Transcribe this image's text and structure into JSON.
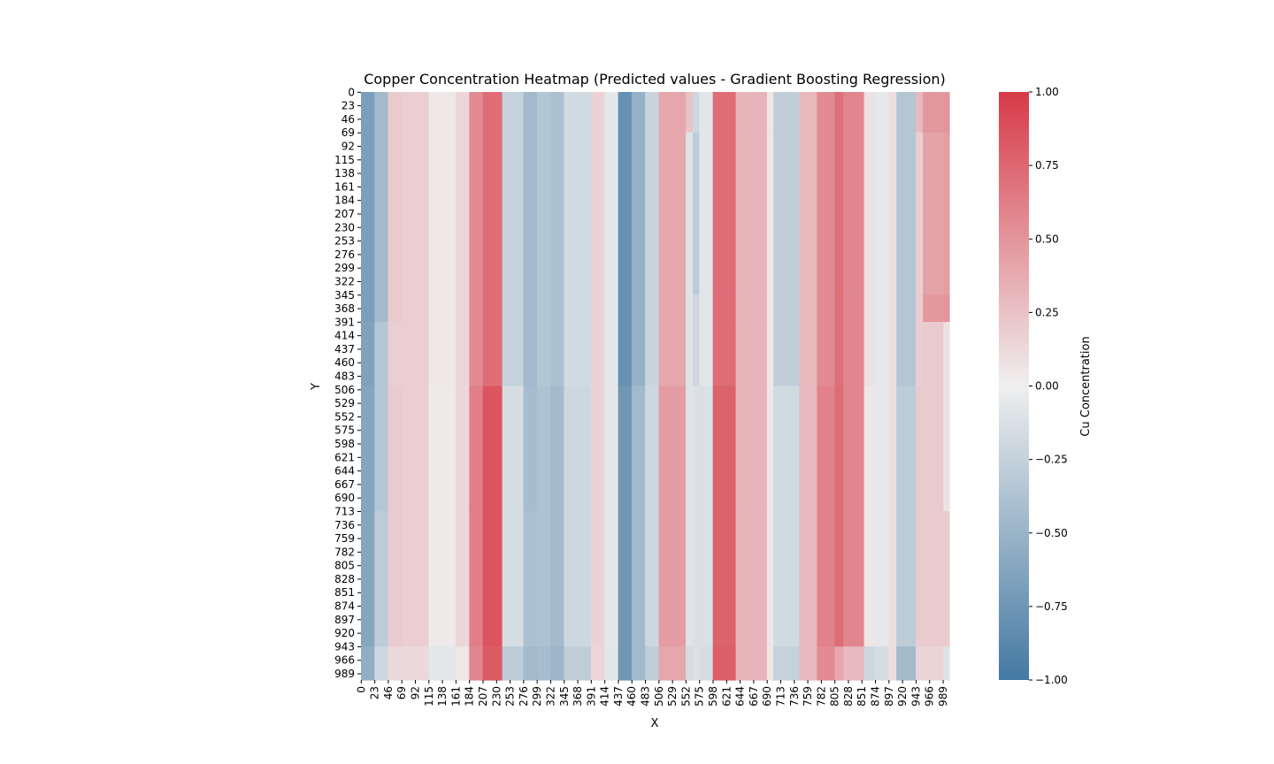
{
  "chart_data": {
    "type": "heatmap",
    "title": "Copper Concentration Heatmap (Predicted values - Gradient Boosting Regression)",
    "xlabel": "X",
    "ylabel": "Y",
    "colorbar_label": "Cu Concentration",
    "vmin": -1.0,
    "vmax": 1.0,
    "colormap": {
      "low": "#4479a2",
      "mid": "#efefef",
      "high": "#d73a47"
    },
    "x_ticks": [
      0,
      23,
      46,
      69,
      92,
      115,
      138,
      161,
      184,
      207,
      230,
      253,
      276,
      299,
      322,
      345,
      368,
      391,
      414,
      437,
      460,
      483,
      506,
      529,
      552,
      575,
      598,
      621,
      644,
      667,
      690,
      713,
      736,
      759,
      782,
      805,
      828,
      851,
      874,
      897,
      920,
      943,
      966,
      989
    ],
    "y_ticks": [
      0,
      23,
      46,
      69,
      92,
      115,
      138,
      161,
      184,
      207,
      230,
      253,
      276,
      299,
      322,
      345,
      368,
      391,
      414,
      437,
      460,
      483,
      506,
      529,
      552,
      575,
      598,
      621,
      644,
      667,
      690,
      713,
      736,
      759,
      782,
      805,
      828,
      851,
      874,
      897,
      920,
      943,
      966,
      989
    ],
    "colorbar_ticks": [
      "1.00",
      "0.75",
      "0.50",
      "0.25",
      "0.00",
      "−0.25",
      "−0.50",
      "−0.75",
      "−1.00"
    ],
    "colorbar_tick_values": [
      1.0,
      0.75,
      0.5,
      0.25,
      0.0,
      -0.25,
      -0.5,
      -0.75,
      -1.0
    ],
    "y_bands": [
      {
        "y_start": 0,
        "y_end": 69
      },
      {
        "y_start": 69,
        "y_end": 345
      },
      {
        "y_start": 345,
        "y_end": 391
      },
      {
        "y_start": 391,
        "y_end": 500
      },
      {
        "y_start": 500,
        "y_end": 713
      },
      {
        "y_start": 713,
        "y_end": 943
      },
      {
        "y_start": 943,
        "y_end": 1000
      }
    ],
    "x_columns": [
      {
        "x_start": 0,
        "x_end": 23,
        "values": [
          -0.68,
          -0.68,
          -0.68,
          -0.65,
          -0.62,
          -0.62,
          -0.55
        ]
      },
      {
        "x_start": 23,
        "x_end": 46,
        "values": [
          -0.45,
          -0.45,
          -0.45,
          -0.35,
          -0.35,
          -0.3,
          -0.2
        ]
      },
      {
        "x_start": 46,
        "x_end": 69,
        "values": [
          0.2,
          0.2,
          0.2,
          0.18,
          0.2,
          0.2,
          0.12
        ]
      },
      {
        "x_start": 69,
        "x_end": 115,
        "values": [
          0.18,
          0.18,
          0.18,
          0.18,
          0.18,
          0.18,
          0.12
        ]
      },
      {
        "x_start": 115,
        "x_end": 161,
        "values": [
          0.04,
          0.04,
          0.04,
          0.04,
          0.03,
          0.03,
          -0.06
        ]
      },
      {
        "x_start": 161,
        "x_end": 184,
        "values": [
          0.14,
          0.14,
          0.14,
          0.14,
          0.14,
          0.14,
          0.05
        ]
      },
      {
        "x_start": 184,
        "x_end": 207,
        "values": [
          0.55,
          0.55,
          0.55,
          0.55,
          0.62,
          0.62,
          0.58
        ]
      },
      {
        "x_start": 207,
        "x_end": 240,
        "values": [
          0.72,
          0.72,
          0.72,
          0.72,
          0.85,
          0.85,
          0.82
        ]
      },
      {
        "x_start": 240,
        "x_end": 276,
        "values": [
          -0.25,
          -0.25,
          -0.25,
          -0.25,
          -0.15,
          -0.15,
          -0.3
        ]
      },
      {
        "x_start": 276,
        "x_end": 299,
        "values": [
          -0.45,
          -0.45,
          -0.45,
          -0.45,
          -0.42,
          -0.4,
          -0.45
        ]
      },
      {
        "x_start": 299,
        "x_end": 322,
        "values": [
          -0.35,
          -0.35,
          -0.35,
          -0.35,
          -0.38,
          -0.38,
          -0.42
        ]
      },
      {
        "x_start": 322,
        "x_end": 345,
        "values": [
          -0.4,
          -0.4,
          -0.4,
          -0.4,
          -0.44,
          -0.44,
          -0.48
        ]
      },
      {
        "x_start": 345,
        "x_end": 391,
        "values": [
          -0.18,
          -0.18,
          -0.18,
          -0.18,
          -0.2,
          -0.2,
          -0.28
        ]
      },
      {
        "x_start": 391,
        "x_end": 414,
        "values": [
          0.16,
          0.16,
          0.16,
          0.16,
          0.16,
          0.16,
          0.14
        ]
      },
      {
        "x_start": 414,
        "x_end": 437,
        "values": [
          -0.06,
          -0.06,
          -0.06,
          -0.06,
          -0.06,
          -0.06,
          -0.08
        ]
      },
      {
        "x_start": 437,
        "x_end": 460,
        "values": [
          -0.8,
          -0.8,
          -0.8,
          -0.8,
          -0.75,
          -0.75,
          -0.75
        ]
      },
      {
        "x_start": 460,
        "x_end": 483,
        "values": [
          -0.52,
          -0.52,
          -0.52,
          -0.52,
          -0.45,
          -0.45,
          -0.45
        ]
      },
      {
        "x_start": 483,
        "x_end": 506,
        "values": [
          -0.22,
          -0.22,
          -0.22,
          -0.22,
          -0.2,
          -0.2,
          -0.28
        ]
      },
      {
        "x_start": 506,
        "x_end": 552,
        "values": [
          0.4,
          0.4,
          0.4,
          0.4,
          0.45,
          0.45,
          0.4
        ]
      },
      {
        "x_start": 552,
        "x_end": 564,
        "values": [
          0.25,
          -0.1,
          -0.1,
          -0.1,
          -0.1,
          -0.1,
          -0.15
        ]
      },
      {
        "x_start": 564,
        "x_end": 575,
        "values": [
          -0.2,
          -0.3,
          -0.2,
          -0.2,
          -0.12,
          -0.12,
          -0.12
        ]
      },
      {
        "x_start": 575,
        "x_end": 598,
        "values": [
          -0.08,
          -0.08,
          -0.08,
          -0.08,
          -0.12,
          -0.12,
          -0.15
        ]
      },
      {
        "x_start": 598,
        "x_end": 637,
        "values": [
          0.72,
          0.72,
          0.72,
          0.72,
          0.78,
          0.78,
          0.8
        ]
      },
      {
        "x_start": 637,
        "x_end": 690,
        "values": [
          0.32,
          0.32,
          0.32,
          0.32,
          0.32,
          0.32,
          0.32
        ]
      },
      {
        "x_start": 690,
        "x_end": 701,
        "values": [
          0.05,
          0.05,
          0.05,
          0.05,
          0.05,
          0.05,
          0.05
        ]
      },
      {
        "x_start": 701,
        "x_end": 745,
        "values": [
          -0.28,
          -0.28,
          -0.28,
          -0.28,
          -0.18,
          -0.18,
          -0.25
        ]
      },
      {
        "x_start": 745,
        "x_end": 775,
        "values": [
          0.3,
          0.3,
          0.3,
          0.3,
          0.3,
          0.3,
          0.3
        ]
      },
      {
        "x_start": 775,
        "x_end": 805,
        "values": [
          0.55,
          0.55,
          0.55,
          0.55,
          0.6,
          0.6,
          0.55
        ]
      },
      {
        "x_start": 805,
        "x_end": 820,
        "values": [
          0.7,
          0.7,
          0.7,
          0.7,
          0.72,
          0.72,
          0.4
        ]
      },
      {
        "x_start": 820,
        "x_end": 855,
        "values": [
          0.58,
          0.58,
          0.58,
          0.58,
          0.58,
          0.58,
          0.3
        ]
      },
      {
        "x_start": 855,
        "x_end": 874,
        "values": [
          0.08,
          0.08,
          0.08,
          0.08,
          0.05,
          0.05,
          -0.2
        ]
      },
      {
        "x_start": 874,
        "x_end": 897,
        "values": [
          -0.05,
          -0.05,
          -0.05,
          -0.05,
          -0.05,
          -0.05,
          -0.15
        ]
      },
      {
        "x_start": 897,
        "x_end": 910,
        "values": [
          0.1,
          0.1,
          0.1,
          0.1,
          0.1,
          0.1,
          0.1
        ]
      },
      {
        "x_start": 910,
        "x_end": 943,
        "values": [
          -0.35,
          -0.35,
          -0.35,
          -0.35,
          -0.3,
          -0.3,
          -0.45
        ]
      },
      {
        "x_start": 943,
        "x_end": 955,
        "values": [
          0.3,
          0.18,
          0.18,
          0.18,
          0.2,
          0.2,
          0.15
        ]
      },
      {
        "x_start": 955,
        "x_end": 990,
        "values": [
          0.48,
          0.42,
          0.48,
          0.2,
          0.2,
          0.2,
          0.15
        ]
      },
      {
        "x_start": 990,
        "x_end": 1000,
        "values": [
          0.5,
          0.45,
          0.5,
          0.08,
          0.08,
          0.2,
          -0.1
        ]
      }
    ]
  }
}
